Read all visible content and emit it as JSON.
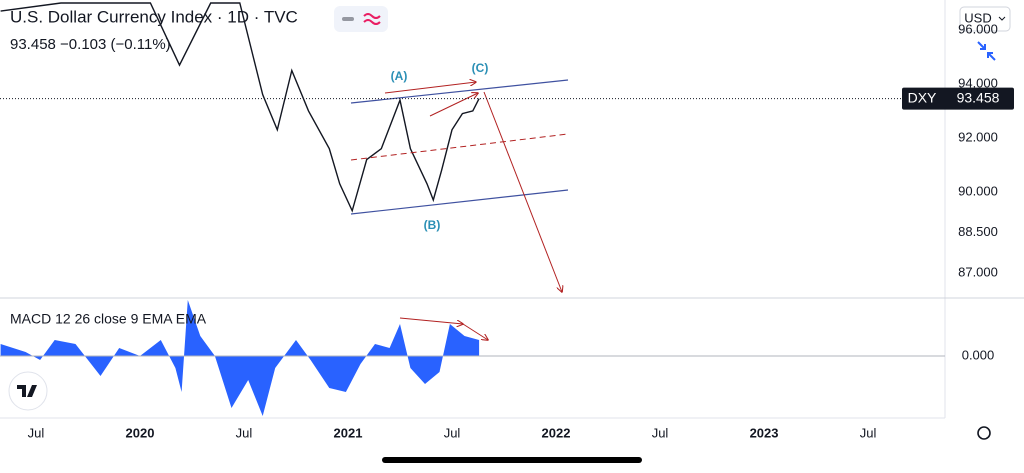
{
  "header": {
    "title": "U.S. Dollar Currency Index · 1D · TVC",
    "quote": "93.458  −0.103 (−0.11%)",
    "currency": "USD"
  },
  "price_label": {
    "symbol": "DXY",
    "value": 93.458
  },
  "chart_data": [
    {
      "type": "line",
      "series": [
        {
          "name": "DXY",
          "color": "#131722",
          "x": [
            2019.33,
            2019.62,
            2019.81,
            2020.05,
            2020.19,
            2020.34,
            2020.48,
            2020.59,
            2020.66,
            2020.73,
            2020.81,
            2020.91,
            2020.96,
            2021.02,
            2021.09,
            2021.16,
            2021.25,
            2021.3,
            2021.38,
            2021.41,
            2021.45,
            2021.5,
            2021.55,
            2021.6,
            2021.63
          ],
          "values": [
            96.7,
            97.0,
            97.0,
            97.0,
            94.7,
            97.0,
            97.0,
            93.6,
            92.3,
            94.5,
            93.0,
            91.6,
            90.3,
            89.3,
            91.2,
            91.6,
            93.4,
            91.6,
            90.3,
            89.7,
            90.8,
            92.3,
            92.9,
            93.0,
            93.458
          ]
        }
      ],
      "annotations": [
        "(A)",
        "(C)",
        "(B)"
      ],
      "xlim": [
        2019.327,
        2023.87
      ],
      "xticks": [
        {
          "value": 2019.5,
          "label": "Jul"
        },
        2020,
        {
          "value": 2020.5,
          "label": "Jul"
        },
        2021,
        {
          "value": 2021.5,
          "label": "Jul"
        },
        2022,
        {
          "value": 2022.5,
          "label": "Jul"
        },
        2023,
        {
          "value": 2023.5,
          "label": "Jul"
        }
      ],
      "ylim": [
        86.07,
        97.11
      ],
      "yticks": [
        {
          "value": 96,
          "label": "96.000"
        },
        {
          "value": 94,
          "label": "94.000"
        },
        {
          "value": 92,
          "label": "92.000"
        },
        {
          "value": 90,
          "label": "90.000"
        },
        {
          "value": 88.5,
          "label": "88.500"
        },
        {
          "value": 87,
          "label": "87.000"
        }
      ]
    },
    {
      "type": "area",
      "title": "MACD  12 26 close 9 EMA EMA",
      "series": [
        {
          "name": "MACD",
          "color": "#2962ff",
          "x": [
            2019.33,
            2019.45,
            2019.52,
            2019.59,
            2019.69,
            2019.81,
            2019.9,
            2020.0,
            2020.1,
            2020.17,
            2020.2,
            2020.23,
            2020.29,
            2020.36,
            2020.44,
            2020.52,
            2020.59,
            2020.65,
            2020.75,
            2020.82,
            2020.91,
            2020.99,
            2021.06,
            2021.13,
            2021.2,
            2021.25,
            2021.3,
            2021.37,
            2021.44,
            2021.49,
            2021.56,
            2021.63
          ],
          "values": [
            0.3,
            0.1,
            -0.1,
            0.4,
            0.3,
            -0.5,
            0.2,
            0.0,
            0.4,
            -0.3,
            -0.9,
            1.4,
            0.5,
            0.0,
            -1.3,
            -0.6,
            -1.5,
            -0.3,
            0.4,
            -0.1,
            -0.8,
            -0.9,
            -0.2,
            0.3,
            0.2,
            0.8,
            -0.3,
            -0.7,
            -0.4,
            0.8,
            0.5,
            0.4
          ]
        }
      ],
      "xlim": [
        2019.327,
        2023.87
      ],
      "ylim": [
        -1.55,
        1.45
      ],
      "yticks": [
        {
          "value": 0,
          "label": "0.000"
        }
      ]
    }
  ]
}
